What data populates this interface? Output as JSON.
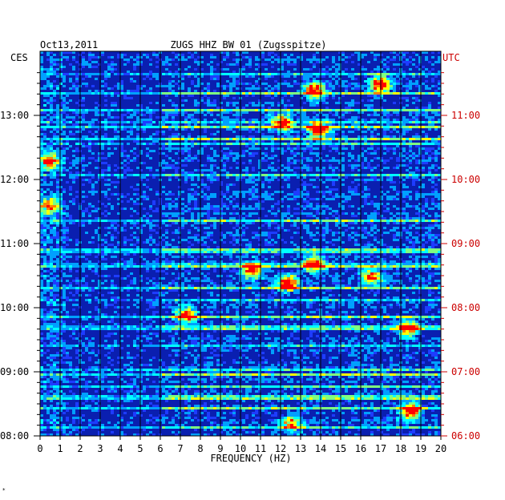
{
  "chart_data": {
    "type": "heatmap",
    "date": "Oct13,2011",
    "title": "ZUGS HHZ BW 01 (Zugsspitze)",
    "xlabel": "FREQUENCY (HZ)",
    "x_range": [
      0,
      20
    ],
    "x_ticks": [
      "0",
      "1",
      "2",
      "3",
      "4",
      "5",
      "6",
      "7",
      "8",
      "9",
      "10",
      "11",
      "12",
      "13",
      "14",
      "15",
      "16",
      "17",
      "18",
      "19",
      "20"
    ],
    "left_axis": {
      "label": "CES",
      "range": [
        "08:00",
        "13:40"
      ],
      "ticks": [
        "08:00",
        "09:00",
        "10:00",
        "11:00",
        "12:00",
        "13:00"
      ]
    },
    "right_axis": {
      "label": "UTC",
      "range": [
        "06:00",
        "11:40"
      ],
      "ticks": [
        "06:00",
        "07:00",
        "08:00",
        "09:00",
        "10:00",
        "11:00"
      ]
    },
    "color_scale": [
      "#00008b",
      "#0000cd",
      "#1e3cff",
      "#00a0ff",
      "#00ffff",
      "#7fff7f",
      "#ffff00",
      "#ff8000",
      "#ff0000"
    ],
    "background_color": "#0a1fb0",
    "hotspots_hz_hours": [
      {
        "f": 13.6,
        "t": 13.4,
        "level": 0.8
      },
      {
        "f": 13.8,
        "t": 12.8,
        "level": 0.85
      },
      {
        "f": 12.0,
        "t": 12.9,
        "level": 0.7
      },
      {
        "f": 10.5,
        "t": 10.6,
        "level": 0.75
      },
      {
        "f": 13.6,
        "t": 10.7,
        "level": 0.8
      },
      {
        "f": 12.3,
        "t": 10.4,
        "level": 0.85
      },
      {
        "f": 7.2,
        "t": 9.9,
        "level": 0.7
      },
      {
        "f": 18.4,
        "t": 8.4,
        "level": 0.9
      },
      {
        "f": 18.3,
        "t": 9.7,
        "level": 0.8
      },
      {
        "f": 16.5,
        "t": 10.5,
        "level": 0.7
      },
      {
        "f": 16.9,
        "t": 13.5,
        "level": 0.9
      },
      {
        "f": 12.5,
        "t": 8.2,
        "level": 0.6
      },
      {
        "f": 0.4,
        "t": 12.3,
        "level": 0.7
      },
      {
        "f": 0.4,
        "t": 11.6,
        "level": 0.6
      }
    ]
  }
}
